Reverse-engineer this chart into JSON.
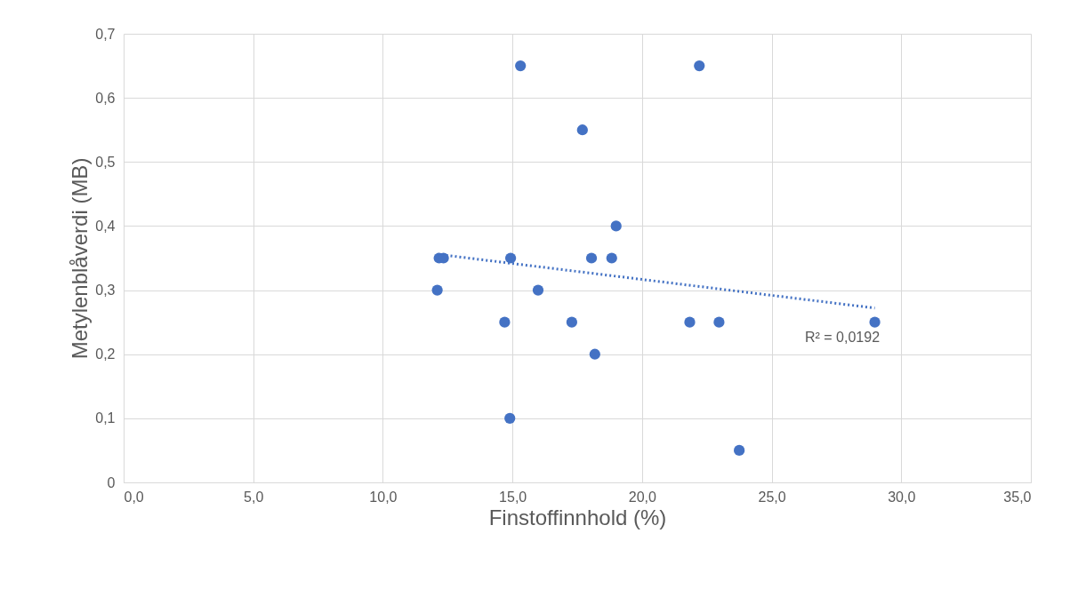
{
  "chart_data": {
    "type": "scatter",
    "xlabel": "Finstoffinnhold (%)",
    "ylabel": "Metylenblåverdi (MB)",
    "series": [
      {
        "marker": "circle",
        "color": "#4472c4",
        "x": [
          15.31,
          22.21,
          17.7,
          19.0,
          12.17,
          12.34,
          14.93,
          18.05,
          18.83,
          12.1,
          15.99,
          14.7,
          17.29,
          21.84,
          22.97,
          28.98,
          18.18,
          14.9,
          23.75
        ],
        "values": [
          0.65,
          0.65,
          0.55,
          0.4,
          0.35,
          0.35,
          0.35,
          0.35,
          0.35,
          0.3,
          0.3,
          0.25,
          0.25,
          0.25,
          0.25,
          0.25,
          0.2,
          0.1,
          0.05
        ]
      },
      {
        "type": "line",
        "color": "#4472c4",
        "line_style": "dotted",
        "x": [
          12.1,
          28.98
        ],
        "values": [
          0.356,
          0.272
        ]
      }
    ],
    "annotations": [
      "R² = 0,0192"
    ],
    "xlim": [
      0,
      35
    ],
    "ylim": [
      0,
      0.7
    ],
    "xticks": [
      {
        "value": 0,
        "label": "0,0"
      },
      {
        "value": 5,
        "label": "5,0"
      },
      {
        "value": 10,
        "label": "10,0"
      },
      {
        "value": 15,
        "label": "15,0"
      },
      {
        "value": 20,
        "label": "20,0"
      },
      {
        "value": 25,
        "label": "25,0"
      },
      {
        "value": 30,
        "label": "30,0"
      },
      {
        "value": 35,
        "label": "35,0"
      }
    ],
    "yticks": [
      0,
      {
        "value": 0.1,
        "label": "0,1"
      },
      {
        "value": 0.2,
        "label": "0,2"
      },
      {
        "value": 0.3,
        "label": "0,3"
      },
      {
        "value": 0.4,
        "label": "0,4"
      },
      {
        "value": 0.5,
        "label": "0,5"
      },
      {
        "value": 0.6,
        "label": "0,6"
      },
      {
        "value": 0.7,
        "label": "0,7"
      }
    ],
    "grid": true
  }
}
